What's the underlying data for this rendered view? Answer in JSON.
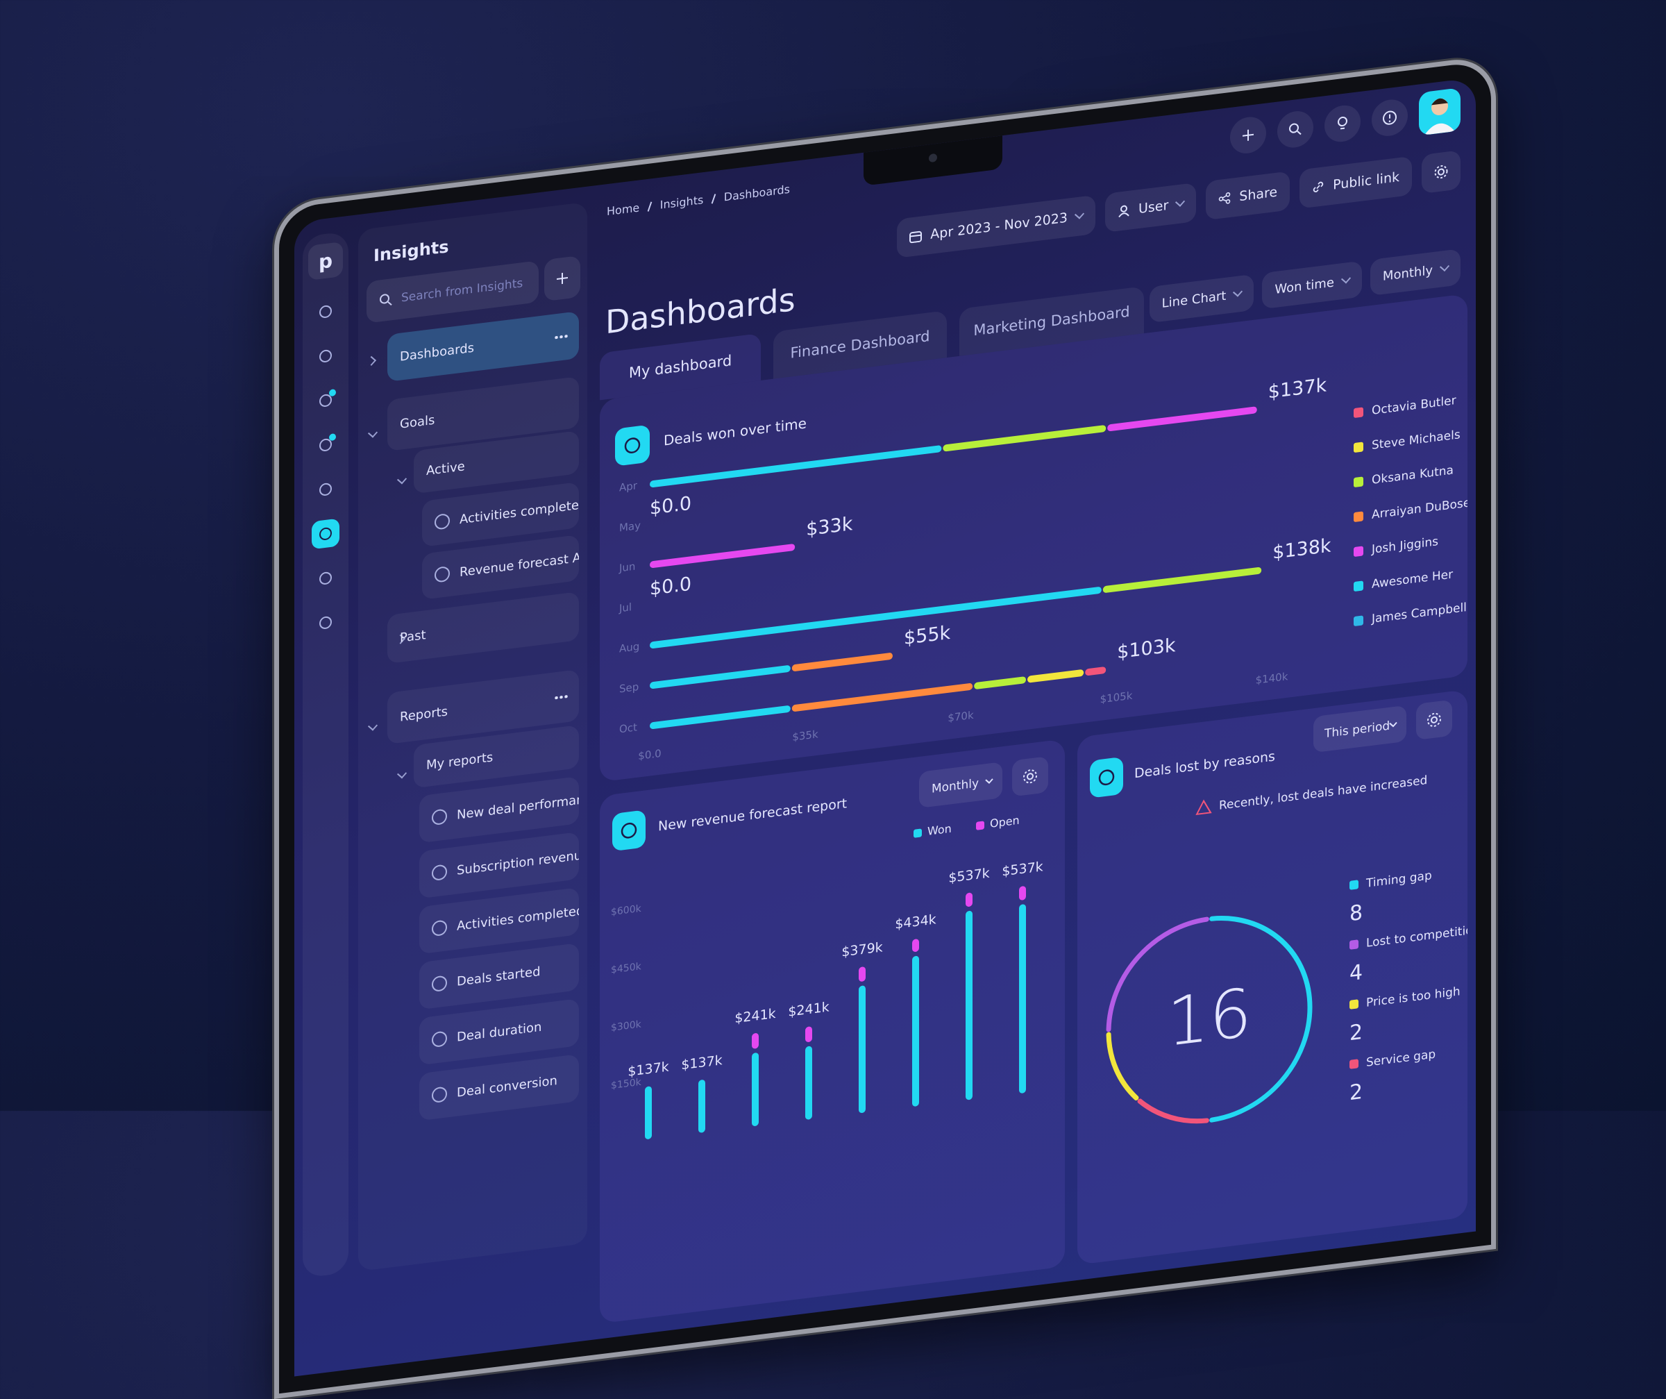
{
  "rail": {
    "logo": "p"
  },
  "sidebar": {
    "title": "Insights",
    "search_placeholder": "Search from Insights",
    "dashboards": "Dashboards",
    "goals": "Goals",
    "active": "Active",
    "active_items": [
      "Activities completed A. DuBose",
      "Revenue forecast A. DuBose"
    ],
    "past": "Past",
    "reports": "Reports",
    "my_reports": "My reports",
    "report_items": [
      "New deal performance",
      "Subscription revenue report",
      "Activities completed and pla...",
      "Deals started",
      "Deal duration",
      "Deal conversion"
    ]
  },
  "header": {
    "breadcrumbs": [
      "Home",
      "Insights",
      "Dashboards"
    ],
    "date_range": "Apr 2023 - Nov 2023",
    "user": "User",
    "share": "Share",
    "public_link": "Public link"
  },
  "page_title": "Dashboards",
  "tabs": [
    "My dashboard",
    "Finance Dashboard",
    "Marketing Dashboard"
  ],
  "chart_controls": [
    "Line Chart",
    "Won time",
    "Monthly"
  ],
  "deals_won": {
    "type": "bar",
    "title": "Deals won over time",
    "categories": [
      "Apr",
      "May",
      "Jun",
      "Jul",
      "Aug",
      "Sep",
      "Oct"
    ],
    "series": [
      {
        "name": "Octavia Butler",
        "color": "#f2557a",
        "values": [
          null,
          null,
          null,
          null,
          null,
          null,
          5000
        ]
      },
      {
        "name": "Steve Michaels",
        "color": "#f2e63c",
        "values": [
          null,
          null,
          null,
          null,
          null,
          null,
          13000
        ]
      },
      {
        "name": "Oksana Kutna",
        "color": "#b8ef3a",
        "values": [
          37000,
          null,
          null,
          null,
          36000,
          null,
          12000
        ]
      },
      {
        "name": "Arraiyan DuBose",
        "color": "#ff8a3d",
        "values": [
          null,
          null,
          null,
          null,
          null,
          23000,
          41000
        ]
      },
      {
        "name": "Josh Jiggins",
        "color": "#e548f0",
        "values": [
          34000,
          null,
          33000,
          null,
          null,
          null,
          null
        ]
      },
      {
        "name": "Awesome Her",
        "color": "#22d9f2",
        "values": [
          66000,
          null,
          null,
          null,
          102000,
          32000,
          32000
        ]
      },
      {
        "name": "James Campbell",
        "color": "#2fb8e8",
        "values": [
          null,
          null,
          null,
          null,
          null,
          null,
          null
        ]
      }
    ],
    "total_labels": [
      "$137k",
      "$0.0",
      "$33k",
      "$0.0",
      "$138k",
      "$55k",
      "$103k"
    ],
    "xlim": [
      0,
      140000
    ],
    "xticks": [
      {
        "value": 0,
        "label": "$0.0"
      },
      {
        "value": 35000,
        "label": "$35k"
      },
      {
        "value": 70000,
        "label": "$70k"
      },
      {
        "value": 105000,
        "label": "$105k"
      },
      {
        "value": 140000,
        "label": "$140k"
      }
    ]
  },
  "revenue_forecast": {
    "type": "bar",
    "title": "New revenue forecast report",
    "period": "Monthly",
    "series": [
      {
        "name": "Won",
        "color": "#22d9f2",
        "values": [
          137000,
          137000,
          190000,
          190000,
          330000,
          390000,
          490000,
          490000
        ]
      },
      {
        "name": "Open",
        "color": "#e548f0",
        "values": [
          null,
          null,
          51000,
          51000,
          49000,
          44000,
          47000,
          47000
        ]
      }
    ],
    "total_labels": [
      "$137k",
      "$137k",
      "$241k",
      "$241k",
      "$379k",
      "$434k",
      "$537k",
      "$537k"
    ],
    "ylim": [
      0,
      650000
    ],
    "yticks": [
      {
        "value": 150000,
        "label": "$150k"
      },
      {
        "value": 300000,
        "label": "$300k"
      },
      {
        "value": 450000,
        "label": "$450k"
      },
      {
        "value": 600000,
        "label": "$600k"
      }
    ]
  },
  "deals_lost": {
    "type": "pie",
    "title": "Deals lost by reasons",
    "period": "This period",
    "alert": "Recently, lost deals have increased",
    "total": 16,
    "categories": [
      "Timing gap",
      "Lost to competition",
      "Price is too high",
      "Service gap"
    ],
    "values": [
      8,
      4,
      2,
      2
    ],
    "colors": [
      "#22d9f2",
      "#b45ce6",
      "#f2e63c",
      "#f2557a"
    ]
  }
}
